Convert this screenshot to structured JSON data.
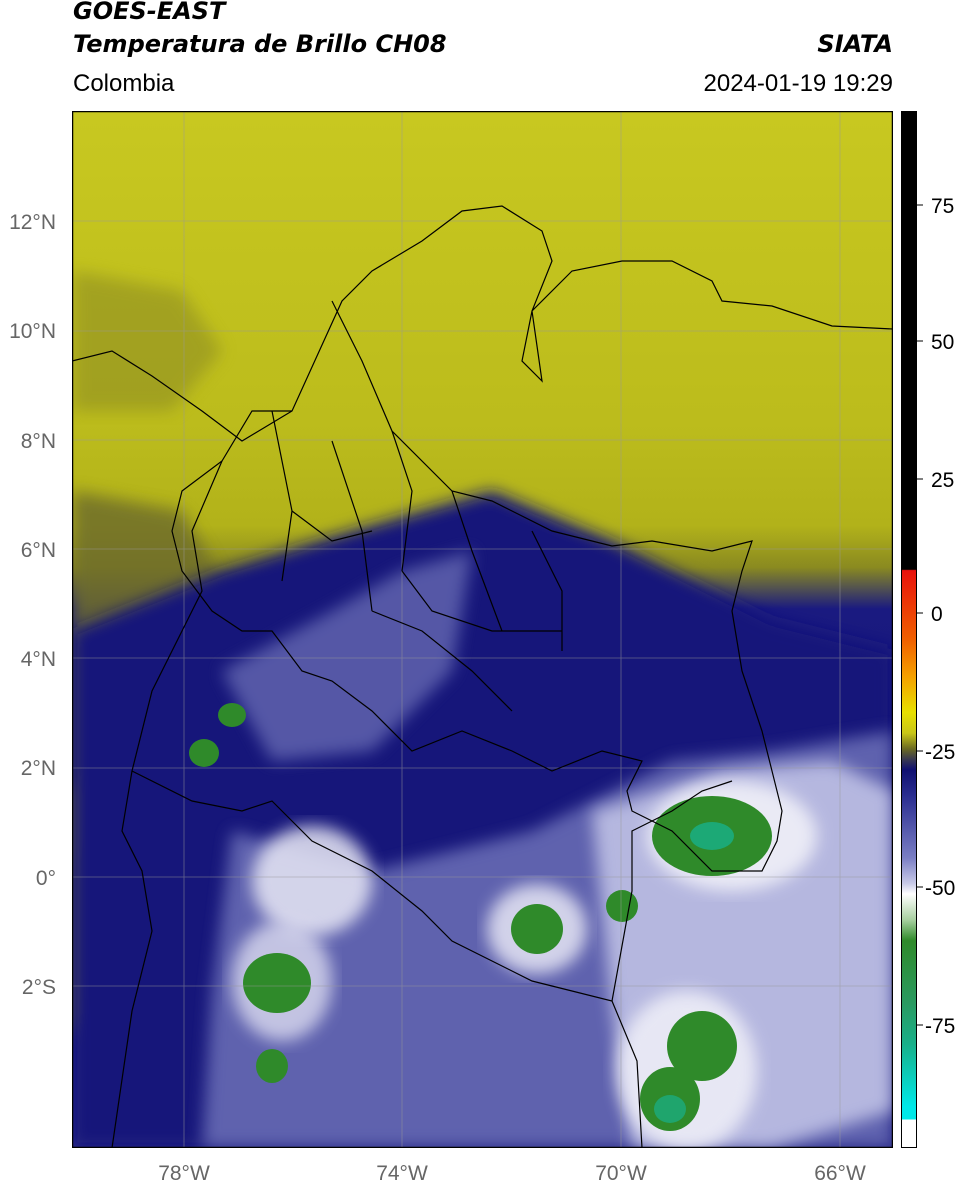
{
  "header": {
    "satellite": "GOES-EAST",
    "product": "Temperatura de Brillo CH08",
    "region": "Colombia",
    "brand": "SIATA",
    "datetime": "2024-01-19 19:29"
  },
  "map": {
    "lat_ticks": [
      "12°N",
      "10°N",
      "8°N",
      "6°N",
      "4°N",
      "2°N",
      "0°",
      "2°S"
    ],
    "lon_ticks": [
      "78°W",
      "74°W",
      "70°W",
      "66°W"
    ],
    "lat_range": [
      -4.9,
      14.1
    ],
    "lon_range": [
      -80.0,
      -65.0
    ]
  },
  "colorbar": {
    "ticks": [
      "75",
      "50",
      "25",
      "0",
      "-25",
      "-50",
      "-75"
    ],
    "range": [
      -93,
      90
    ],
    "colors": {
      "black": "#000000",
      "red": "#e8120c",
      "orange": "#f5a000",
      "yellow": "#e8e000",
      "olive": "#6b6a22",
      "navy": "#101070",
      "lavender": "#a8abd6",
      "white": "#ffffff",
      "green": "#2f8a2a",
      "teal": "#18b08a",
      "cyan": "#00e8e8"
    }
  }
}
